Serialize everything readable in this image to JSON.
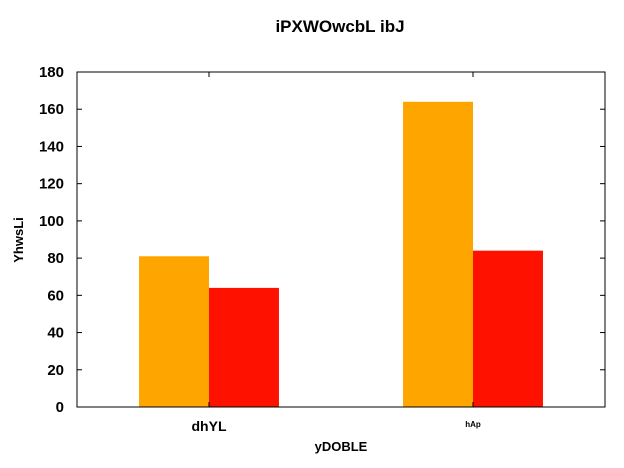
{
  "chart_data": {
    "type": "bar",
    "title": "iPXWOwcbL  ibJ",
    "xlabel": "yDOBLE",
    "ylabel": "YhwsLi",
    "categories": [
      "dhYL",
      "hAp"
    ],
    "series": [
      {
        "values": [
          81,
          164
        ],
        "color": "#ffa500"
      },
      {
        "values": [
          64,
          84
        ],
        "color": "#ff1100"
      }
    ],
    "ylim": [
      0,
      180
    ],
    "yticks": [
      0,
      20,
      40,
      60,
      80,
      100,
      120,
      140,
      160,
      180
    ],
    "grid": false,
    "legend": "none"
  }
}
